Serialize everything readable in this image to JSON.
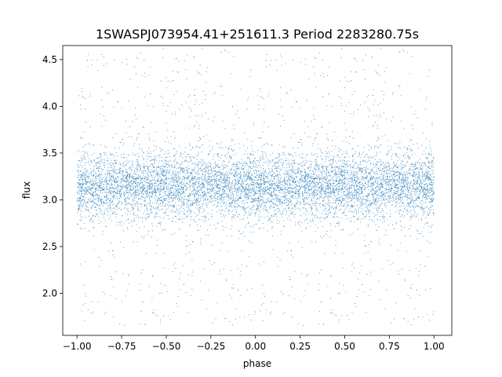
{
  "chart_data": {
    "type": "scatter",
    "title": "1SWASPJ073954.41+251611.3 Period 2283280.75s",
    "xlabel": "phase",
    "ylabel": "flux",
    "xlim": [
      -1.08,
      1.1
    ],
    "ylim": [
      1.55,
      4.65
    ],
    "xticks": [
      -1.0,
      -0.75,
      -0.5,
      -0.25,
      0.0,
      0.25,
      0.5,
      0.75,
      1.0
    ],
    "xtick_labels": [
      "−1.00",
      "−0.75",
      "−0.50",
      "−0.25",
      "0.00",
      "0.25",
      "0.50",
      "0.75",
      "1.00"
    ],
    "yticks": [
      2.0,
      2.5,
      3.0,
      3.5,
      4.0,
      4.5
    ],
    "ytick_labels": [
      "2.0",
      "2.5",
      "3.0",
      "3.5",
      "4.0",
      "4.5"
    ],
    "grid": false,
    "marker_color": "#1f77b4",
    "series": [
      {
        "x_range": [
          -1.0,
          1.0
        ],
        "y_center": 3.15,
        "y_core_spread": 0.18,
        "y_range": [
          1.65,
          4.62
        ],
        "folded_symmetric": true,
        "point_count": 9000
      }
    ]
  }
}
